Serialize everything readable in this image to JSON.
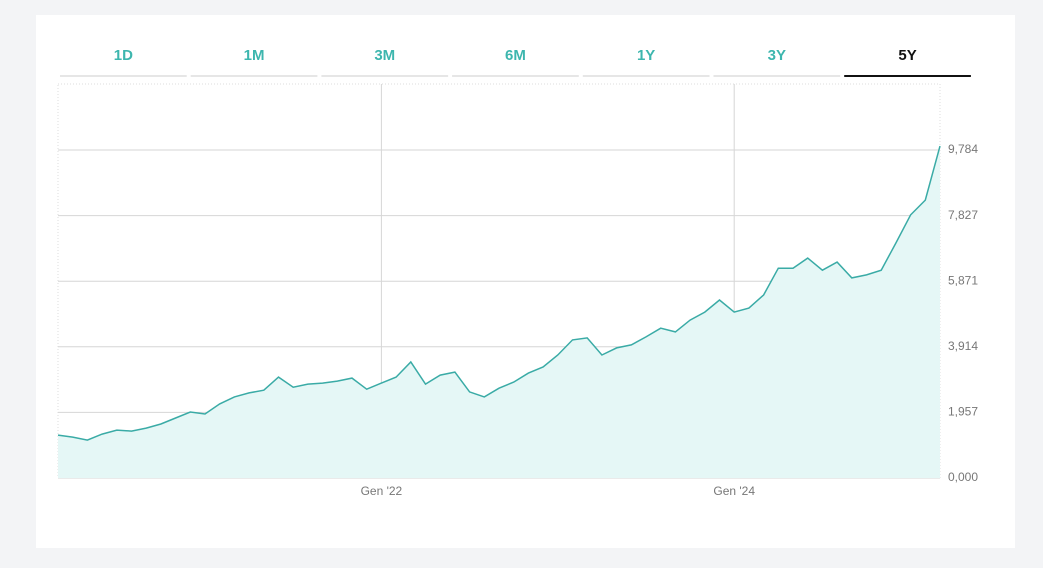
{
  "tabs": {
    "labels": [
      "1D",
      "1M",
      "3M",
      "6M",
      "1Y",
      "3Y",
      "5Y"
    ],
    "active": 6
  },
  "chart_data": {
    "type": "line",
    "categories": [
      null,
      null,
      null,
      null,
      null,
      null,
      null,
      null,
      null,
      null,
      null,
      null,
      null,
      null,
      null,
      null,
      null,
      null,
      null,
      null,
      null,
      null,
      "Gen '22",
      null,
      null,
      null,
      null,
      null,
      null,
      null,
      null,
      null,
      null,
      null,
      null,
      null,
      null,
      null,
      null,
      null,
      null,
      null,
      null,
      null,
      null,
      null,
      "Gen '24",
      null,
      null,
      null,
      null,
      null,
      null,
      null,
      null,
      null,
      null,
      null,
      null,
      null,
      null
    ],
    "series": [
      {
        "color": "#3aaba6",
        "fill": "#e5f7f6",
        "values": [
          1.28,
          1.22,
          1.13,
          1.31,
          1.43,
          1.4,
          1.49,
          1.61,
          1.79,
          1.97,
          1.91,
          2.21,
          2.42,
          2.54,
          2.62,
          3.01,
          2.71,
          2.8,
          2.83,
          2.89,
          2.98,
          2.65,
          2.83,
          3.01,
          3.46,
          2.8,
          3.07,
          3.16,
          2.57,
          2.42,
          2.68,
          2.86,
          3.13,
          3.31,
          3.67,
          4.12,
          4.18,
          3.67,
          3.88,
          3.97,
          4.21,
          4.47,
          4.36,
          4.71,
          4.95,
          5.31,
          4.95,
          5.07,
          5.46,
          6.26,
          6.26,
          6.56,
          6.2,
          6.44,
          5.97,
          6.06,
          6.2,
          7.01,
          7.85,
          8.29,
          9.9
        ]
      }
    ],
    "ylim": [
      0,
      11.754
    ],
    "yticks": [
      {
        "value": 0,
        "label": "0,000"
      },
      {
        "value": 1.957,
        "label": "1,957"
      },
      {
        "value": 3.914,
        "label": "3,914"
      },
      {
        "value": 5.871,
        "label": "5,871"
      },
      {
        "value": 7.827,
        "label": "7,827"
      },
      {
        "value": 9.784,
        "label": "9,784"
      }
    ],
    "grid": true
  }
}
